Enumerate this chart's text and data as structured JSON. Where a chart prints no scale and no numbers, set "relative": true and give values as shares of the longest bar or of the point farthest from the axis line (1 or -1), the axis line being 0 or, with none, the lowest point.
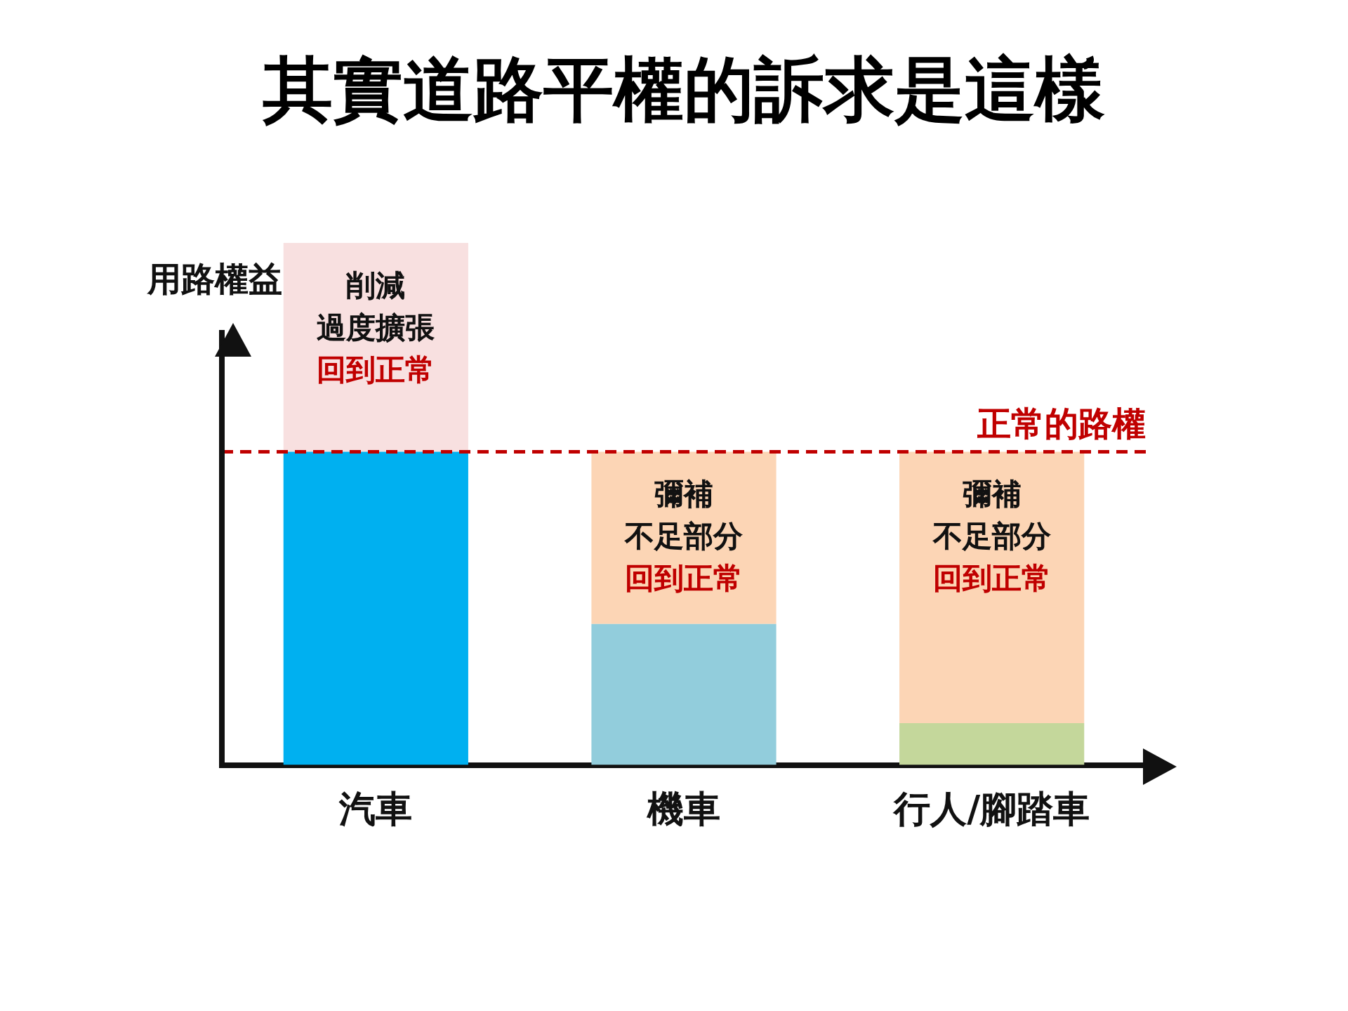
{
  "chart_data": {
    "type": "bar",
    "title": "其實道路平權的訴求是這樣",
    "ylabel": "用路權益",
    "relative": true,
    "stacked": true,
    "legend": false,
    "grid": false,
    "tick_labels": "x",
    "categories": [
      "汽車",
      "機車",
      "行人/腳踏車"
    ],
    "series": [
      {
        "colors": [
          "#00b0f0",
          "#92cddc",
          "#c4d79b"
        ],
        "values": [
          0.6,
          0.27,
          0.08
        ]
      },
      {
        "colors": [
          "#f8e0e0",
          "#fcd5b5",
          "#fcd5b5"
        ],
        "values": [
          0.4,
          0.33,
          0.52
        ]
      }
    ],
    "ref_lines": [
      {
        "axis": "y",
        "value": 0.6,
        "label": "正常的路權",
        "color": "#c00000",
        "line_style": "dashed"
      }
    ],
    "annotations": [
      "削減",
      "過度擴張",
      "回到正常",
      "彌補",
      "不足部分",
      "回到正常",
      "彌補",
      "不足部分",
      "回到正常"
    ]
  }
}
